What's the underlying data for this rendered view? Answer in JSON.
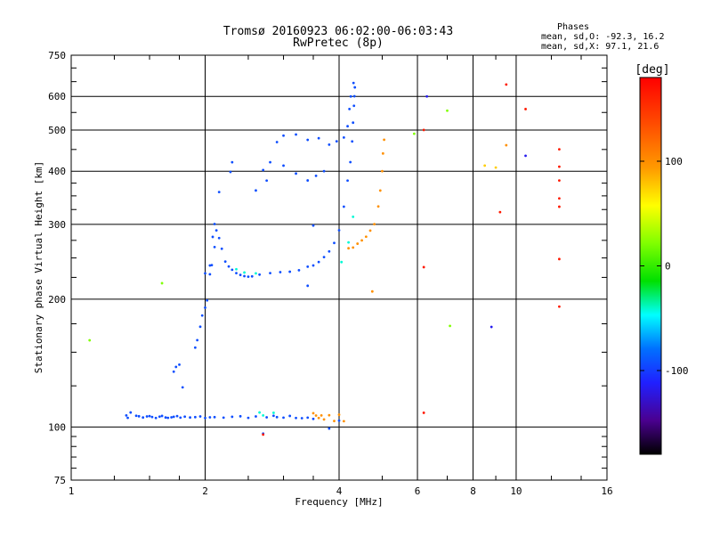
{
  "chart_data": {
    "type": "scatter",
    "title": "Tromsø 20160923 06:02:00-06:03:43",
    "subtitle": "RwPretec (8p)",
    "xlabel": "Frequency [MHz]",
    "ylabel": "Stationary phase Virtual Height [km]",
    "x_scale": "log",
    "y_scale": "log",
    "xlim": [
      1,
      16
    ],
    "ylim": [
      75,
      750
    ],
    "x_ticks": [
      "1",
      "2",
      "4",
      "6",
      "8",
      "10",
      "16"
    ],
    "x_tick_values": [
      1,
      2,
      4,
      6,
      8,
      10,
      16
    ],
    "y_ticks": [
      "75",
      "100",
      "200",
      "300",
      "400",
      "500",
      "600",
      "750"
    ],
    "y_tick_values": [
      75,
      100,
      200,
      300,
      400,
      500,
      600,
      750
    ],
    "grid": true,
    "phase_legend": {
      "title": "Phases",
      "line1": "mean, sd,O: -92.3, 16.2",
      "line2": "mean, sd,X:  97.1, 21.6"
    },
    "colorbar": {
      "label": "[deg]",
      "range": [
        -180,
        180
      ],
      "ticks": [
        "100",
        "0",
        "-100"
      ],
      "tick_values": [
        100,
        0,
        -100
      ]
    },
    "series": [
      {
        "phase": -95,
        "points": [
          [
            1.33,
            106.5
          ],
          [
            1.34,
            105.1
          ],
          [
            1.36,
            108.2
          ],
          [
            1.4,
            106.3
          ],
          [
            1.42,
            106.0
          ],
          [
            1.45,
            105.3
          ],
          [
            1.48,
            105.9
          ],
          [
            1.5,
            106.1
          ],
          [
            1.52,
            105.6
          ],
          [
            1.55,
            105.0
          ],
          [
            1.58,
            105.8
          ],
          [
            1.6,
            106.2
          ],
          [
            1.63,
            105.3
          ],
          [
            1.65,
            105.1
          ],
          [
            1.68,
            105.4
          ],
          [
            1.7,
            105.7
          ],
          [
            1.73,
            106.1
          ],
          [
            1.76,
            105.2
          ],
          [
            1.8,
            105.8
          ],
          [
            1.85,
            105.3
          ],
          [
            1.9,
            105.5
          ],
          [
            1.95,
            105.9
          ],
          [
            2.0,
            105.0
          ],
          [
            2.05,
            105.4
          ],
          [
            2.1,
            105.5
          ],
          [
            2.2,
            105.2
          ],
          [
            2.3,
            105.7
          ],
          [
            2.4,
            106.0
          ],
          [
            2.5,
            105.1
          ],
          [
            2.6,
            105.9
          ],
          [
            2.75,
            105.4
          ],
          [
            2.85,
            106.3
          ],
          [
            2.9,
            105.5
          ],
          [
            3.0,
            105.2
          ],
          [
            3.1,
            106.2
          ],
          [
            3.2,
            105.0
          ],
          [
            3.3,
            104.9
          ],
          [
            3.4,
            105.2
          ],
          [
            3.5,
            104.5
          ],
          [
            1.9,
            153.8
          ],
          [
            1.92,
            160.1
          ],
          [
            1.95,
            172.2
          ],
          [
            1.97,
            183.0
          ],
          [
            2.0,
            191.0
          ],
          [
            2.02,
            198.6
          ],
          [
            2.05,
            228.8
          ],
          [
            2.07,
            240.5
          ],
          [
            2.1,
            265.2
          ],
          [
            2.12,
            290.3
          ],
          [
            2.15,
            278.4
          ],
          [
            2.18,
            262.8
          ],
          [
            2.22,
            245.1
          ],
          [
            2.26,
            238.7
          ],
          [
            2.3,
            234.5
          ],
          [
            2.35,
            230.2
          ],
          [
            2.4,
            228.0
          ],
          [
            2.45,
            226.5
          ],
          [
            2.5,
            225.8
          ],
          [
            2.55,
            226.2
          ],
          [
            2.65,
            228.4
          ],
          [
            2.8,
            230.3
          ],
          [
            2.95,
            231.5
          ],
          [
            3.1,
            232.0
          ],
          [
            3.25,
            233.9
          ],
          [
            3.4,
            238.5
          ],
          [
            3.5,
            240.0
          ],
          [
            3.6,
            244.6
          ],
          [
            3.7,
            251.2
          ],
          [
            3.8,
            259.0
          ],
          [
            3.9,
            271.2
          ],
          [
            4.0,
            290.5
          ],
          [
            4.1,
            330.1
          ],
          [
            4.18,
            380.2
          ],
          [
            4.24,
            420.3
          ],
          [
            4.28,
            470.1
          ],
          [
            4.3,
            520.4
          ],
          [
            4.32,
            570.2
          ],
          [
            4.33,
            600.5
          ],
          [
            4.34,
            630.1
          ],
          [
            4.31,
            645.3
          ],
          [
            4.25,
            600.0
          ],
          [
            4.22,
            560.3
          ],
          [
            4.18,
            510.5
          ],
          [
            4.1,
            480.2
          ],
          [
            3.95,
            470.5
          ],
          [
            3.8,
            462.0
          ],
          [
            3.6,
            478.3
          ],
          [
            3.4,
            474.0
          ],
          [
            3.2,
            488.0
          ],
          [
            3.0,
            485.1
          ],
          [
            2.9,
            468.5
          ],
          [
            2.8,
            420.0
          ],
          [
            2.7,
            402.5
          ],
          [
            2.6,
            360.4
          ],
          [
            2.75,
            380.2
          ],
          [
            3.0,
            412.3
          ],
          [
            3.2,
            395.0
          ],
          [
            3.4,
            380.5
          ],
          [
            3.55,
            390.2
          ],
          [
            3.7,
            400.1
          ],
          [
            2.28,
            398.4
          ],
          [
            2.3,
            420.0
          ],
          [
            2.15,
            357.3
          ],
          [
            2.1,
            300.5
          ],
          [
            2.08,
            280.2
          ],
          [
            2.05,
            240.0
          ],
          [
            2.0,
            230.0
          ],
          [
            3.5,
            298.0
          ],
          [
            3.4,
            215.0
          ],
          [
            1.7,
            135.0
          ],
          [
            1.72,
            138.5
          ],
          [
            1.75,
            140.2
          ],
          [
            1.78,
            124.0
          ],
          [
            2.7,
            96.5
          ],
          [
            3.8,
            99.2
          ],
          [
            4.0,
            103.5
          ]
        ]
      },
      {
        "phase": -40,
        "points": [
          [
            2.65,
            108.2
          ],
          [
            2.7,
            106.5
          ],
          [
            2.85,
            108.0
          ],
          [
            2.35,
            235.2
          ],
          [
            2.45,
            231.0
          ],
          [
            2.6,
            230.0
          ],
          [
            4.05,
            244.5
          ],
          [
            4.2,
            272.0
          ],
          [
            4.3,
            312.5
          ]
        ]
      },
      {
        "phase": 100,
        "points": [
          [
            3.5,
            107.8
          ],
          [
            3.55,
            106.4
          ],
          [
            3.6,
            105.0
          ],
          [
            3.65,
            106.5
          ],
          [
            3.7,
            104.2
          ],
          [
            3.8,
            106.6
          ],
          [
            3.9,
            103.3
          ],
          [
            4.0,
            106.9
          ],
          [
            4.1,
            103.2
          ],
          [
            4.2,
            263.5
          ],
          [
            4.3,
            264.5
          ],
          [
            4.4,
            270.1
          ],
          [
            4.5,
            275.0
          ],
          [
            4.6,
            280.5
          ],
          [
            4.7,
            290.0
          ],
          [
            4.8,
            300.2
          ],
          [
            4.9,
            330.5
          ],
          [
            4.95,
            360.2
          ],
          [
            5.0,
            400.1
          ],
          [
            5.02,
            440.3
          ],
          [
            5.05,
            474.5
          ],
          [
            4.75,
            208.5
          ],
          [
            9.5,
            460.5
          ]
        ]
      },
      {
        "phase": 165,
        "points": [
          [
            2.7,
            96.0
          ],
          [
            6.2,
            500.2
          ],
          [
            6.2,
            108.0
          ],
          [
            6.2,
            237.8
          ],
          [
            9.2,
            320.5
          ],
          [
            9.5,
            640.0
          ],
          [
            10.5,
            560.2
          ],
          [
            12.5,
            192.0
          ],
          [
            12.5,
            248.5
          ],
          [
            12.5,
            330.0
          ],
          [
            12.5,
            345.2
          ],
          [
            12.5,
            380.3
          ],
          [
            12.5,
            410.0
          ],
          [
            12.5,
            450.5
          ]
        ]
      },
      {
        "phase": 20,
        "points": [
          [
            1.6,
            218.0
          ],
          [
            1.1,
            160.0
          ],
          [
            5.9,
            490.1
          ],
          [
            7.1,
            173.0
          ],
          [
            7.0,
            555.3
          ]
        ]
      },
      {
        "phase": 75,
        "points": [
          [
            8.5,
            412.5
          ],
          [
            9.0,
            408.0
          ]
        ]
      },
      {
        "phase": -120,
        "points": [
          [
            8.8,
            172.0
          ],
          [
            10.5,
            435.0
          ],
          [
            6.3,
            600.0
          ]
        ]
      }
    ]
  }
}
